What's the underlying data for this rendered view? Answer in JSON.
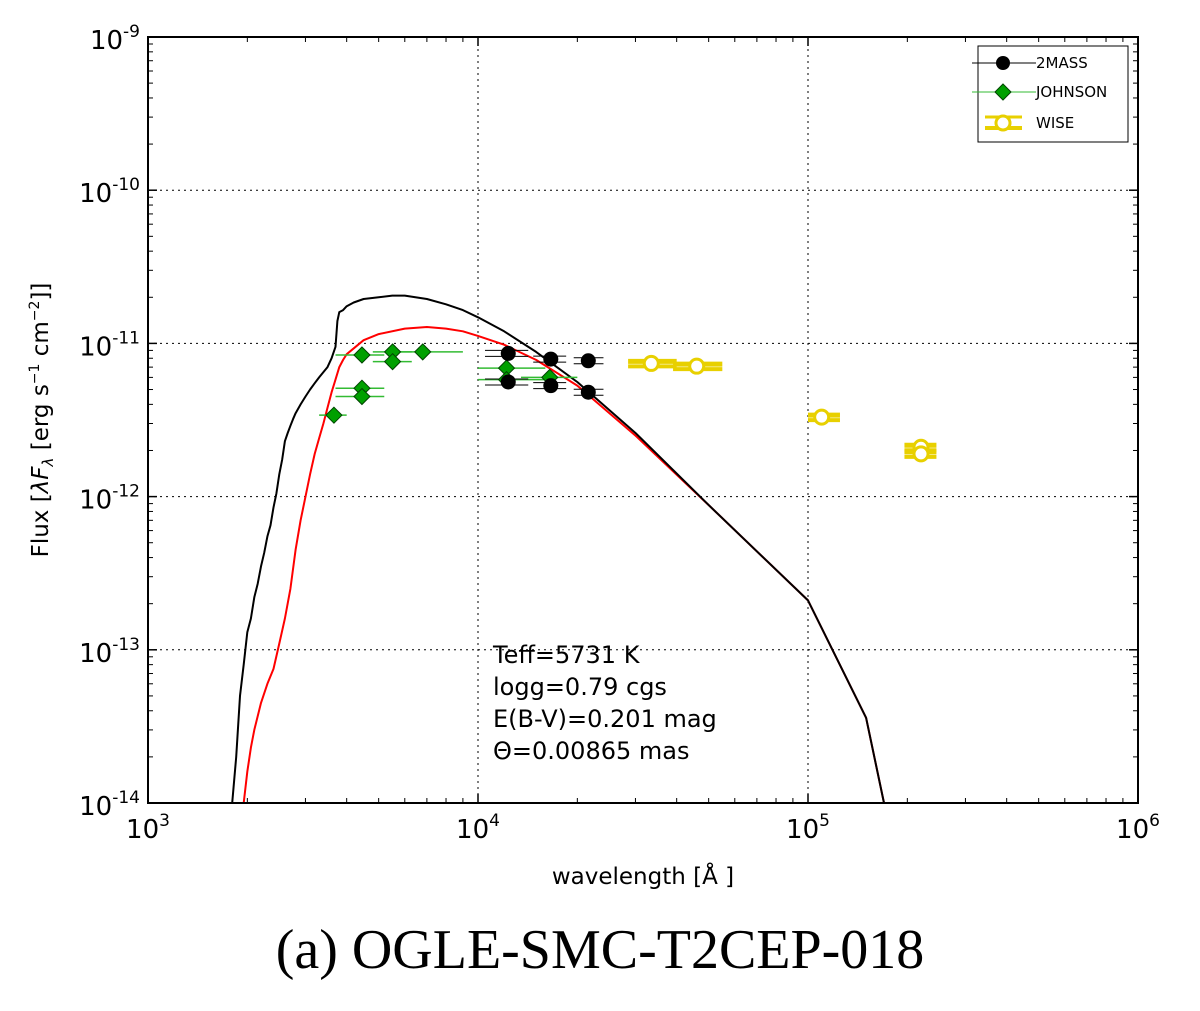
{
  "caption": "(a) OGLE-SMC-T2CEP-018",
  "chart_data": {
    "type": "scatter",
    "xscale": "log",
    "yscale": "log",
    "xlim": [
      1000,
      1000000
    ],
    "ylim": [
      1e-14,
      1e-09
    ],
    "xlabel": "wavelength [Å ]",
    "ylabel": "Flux [λF_λ [erg s⁻¹ cm⁻²]]",
    "x_ticks": [
      {
        "base": "10",
        "exp": "3",
        "value": 1000
      },
      {
        "base": "10",
        "exp": "4",
        "value": 10000
      },
      {
        "base": "10",
        "exp": "5",
        "value": 100000
      },
      {
        "base": "10",
        "exp": "6",
        "value": 1000000
      }
    ],
    "y_ticks": [
      {
        "base": "10",
        "exp": "-14",
        "value": 1e-14
      },
      {
        "base": "10",
        "exp": "-13",
        "value": 1e-13
      },
      {
        "base": "10",
        "exp": "-12",
        "value": 1e-12
      },
      {
        "base": "10",
        "exp": "-11",
        "value": 1e-11
      },
      {
        "base": "10",
        "exp": "-10",
        "value": 1e-10
      },
      {
        "base": "10",
        "exp": "-9",
        "value": 1e-09
      }
    ],
    "grid": true,
    "legend_position": "top-right",
    "annotation": [
      "Teff=5731 K",
      "logg=0.79 cgs",
      "E(B-V)=0.201 mag",
      "Θ=0.00865 mas"
    ],
    "colors": {
      "black_model": "#000000",
      "red_model": "#ff0000",
      "twomass": "#000000",
      "johnson": "#00a000",
      "johnson_err": "#33bb33",
      "wise": "#e8d000"
    },
    "series": [
      {
        "name": "2MASS",
        "marker": "filled-circle",
        "points": [
          {
            "x": 12350,
            "y": 8.6e-12,
            "xerr": [
              10500,
              14200
            ]
          },
          {
            "x": 16620,
            "y": 7.9e-12,
            "xerr": [
              14700,
              18500
            ]
          },
          {
            "x": 21590,
            "y": 7.7e-12,
            "xerr": [
              19500,
              24000
            ]
          },
          {
            "x": 12350,
            "y": 5.6e-12,
            "xerr": [
              10500,
              14200
            ]
          },
          {
            "x": 16620,
            "y": 5.3e-12,
            "xerr": [
              14700,
              18500
            ]
          },
          {
            "x": 21590,
            "y": 4.8e-12,
            "xerr": [
              19500,
              24000
            ]
          }
        ]
      },
      {
        "name": "JOHNSON",
        "marker": "filled-diamond",
        "points": [
          {
            "x": 3660,
            "y": 3.4e-12,
            "xerr": [
              3300,
              4000
            ]
          },
          {
            "x": 4450,
            "y": 8.4e-12,
            "xerr": [
              3700,
              5200
            ]
          },
          {
            "x": 4450,
            "y": 5.1e-12,
            "xerr": [
              3700,
              5200
            ]
          },
          {
            "x": 4450,
            "y": 4.5e-12,
            "xerr": [
              3700,
              5200
            ]
          },
          {
            "x": 5510,
            "y": 8.8e-12,
            "xerr": [
              4800,
              6300
            ]
          },
          {
            "x": 5510,
            "y": 7.6e-12,
            "xerr": [
              4800,
              6300
            ]
          },
          {
            "x": 6800,
            "y": 8.8e-12,
            "xerr": [
              5700,
              9000
            ]
          },
          {
            "x": 12200,
            "y": 6.9e-12,
            "xerr": [
              10000,
              16000
            ]
          },
          {
            "x": 12200,
            "y": 5.8e-12,
            "xerr": [
              10000,
              16000
            ]
          },
          {
            "x": 16500,
            "y": 6e-12,
            "xerr": [
              13500,
              20000
            ]
          }
        ]
      },
      {
        "name": "WISE",
        "marker": "open-circle",
        "points": [
          {
            "x": 33500,
            "y": 7.4e-12,
            "xerr": [
              28500,
              40000
            ]
          },
          {
            "x": 46000,
            "y": 7.1e-12,
            "xerr": [
              39000,
              55000
            ]
          },
          {
            "x": 110000,
            "y": 3.3e-12,
            "xerr": [
              100000,
              125000
            ]
          },
          {
            "x": 220000,
            "y": 2.1e-12,
            "xerr": [
              196000,
              245000
            ]
          },
          {
            "x": 220000,
            "y": 1.9e-12,
            "xerr": [
              196000,
              245000
            ]
          }
        ]
      }
    ],
    "model_curves": [
      {
        "name": "model-black",
        "points": [
          [
            1800,
            1e-14
          ],
          [
            1850,
            2e-14
          ],
          [
            1900,
            5e-14
          ],
          [
            1950,
            8e-14
          ],
          [
            2000,
            1.3e-13
          ],
          [
            2050,
            1.6e-13
          ],
          [
            2100,
            2.2e-13
          ],
          [
            2150,
            2.7e-13
          ],
          [
            2200,
            3.5e-13
          ],
          [
            2250,
            4.3e-13
          ],
          [
            2300,
            5.5e-13
          ],
          [
            2350,
            6.5e-13
          ],
          [
            2400,
            8.5e-13
          ],
          [
            2450,
            1.05e-12
          ],
          [
            2500,
            1.4e-12
          ],
          [
            2550,
            1.75e-12
          ],
          [
            2600,
            2.3e-12
          ],
          [
            2650,
            2.6e-12
          ],
          [
            2700,
            2.9e-12
          ],
          [
            2750,
            3.2e-12
          ],
          [
            2800,
            3.5e-12
          ],
          [
            2900,
            4e-12
          ],
          [
            3000,
            4.5e-12
          ],
          [
            3100,
            5e-12
          ],
          [
            3200,
            5.5e-12
          ],
          [
            3300,
            6e-12
          ],
          [
            3400,
            6.5e-12
          ],
          [
            3500,
            7e-12
          ],
          [
            3600,
            8e-12
          ],
          [
            3700,
            9.5e-12
          ],
          [
            3750,
            1.4e-11
          ],
          [
            3800,
            1.6e-11
          ],
          [
            3900,
            1.65e-11
          ],
          [
            4000,
            1.75e-11
          ],
          [
            4200,
            1.85e-11
          ],
          [
            4500,
            1.95e-11
          ],
          [
            5000,
            2e-11
          ],
          [
            5500,
            2.05e-11
          ],
          [
            6000,
            2.05e-11
          ],
          [
            7000,
            1.95e-11
          ],
          [
            8000,
            1.8e-11
          ],
          [
            9000,
            1.65e-11
          ],
          [
            10000,
            1.48e-11
          ],
          [
            12000,
            1.2e-11
          ],
          [
            15000,
            8.8e-12
          ],
          [
            20000,
            5.6e-12
          ],
          [
            30000,
            2.6e-12
          ],
          [
            50000,
            8.8e-13
          ],
          [
            100000,
            2.1e-13
          ],
          [
            150000,
            3.6e-14
          ],
          [
            170000,
            1e-14
          ]
        ]
      },
      {
        "name": "model-red",
        "points": [
          [
            1950,
            1e-14
          ],
          [
            2000,
            1.6e-14
          ],
          [
            2050,
            2.3e-14
          ],
          [
            2100,
            3e-14
          ],
          [
            2200,
            4.5e-14
          ],
          [
            2300,
            6e-14
          ],
          [
            2400,
            7.5e-14
          ],
          [
            2500,
            1.1e-13
          ],
          [
            2600,
            1.6e-13
          ],
          [
            2700,
            2.5e-13
          ],
          [
            2800,
            4.5e-13
          ],
          [
            2900,
            7e-13
          ],
          [
            3000,
            1e-12
          ],
          [
            3100,
            1.4e-12
          ],
          [
            3200,
            1.9e-12
          ],
          [
            3300,
            2.4e-12
          ],
          [
            3400,
            3e-12
          ],
          [
            3500,
            3.8e-12
          ],
          [
            3600,
            4.8e-12
          ],
          [
            3700,
            5.8e-12
          ],
          [
            3800,
            7e-12
          ],
          [
            3900,
            7.8e-12
          ],
          [
            4000,
            8.5e-12
          ],
          [
            4500,
            1.05e-11
          ],
          [
            5000,
            1.15e-11
          ],
          [
            6000,
            1.25e-11
          ],
          [
            7000,
            1.28e-11
          ],
          [
            8000,
            1.25e-11
          ],
          [
            9000,
            1.2e-11
          ],
          [
            10000,
            1.12e-11
          ],
          [
            12000,
            9.8e-12
          ],
          [
            15000,
            7.8e-12
          ],
          [
            20000,
            5.3e-12
          ],
          [
            30000,
            2.5e-12
          ],
          [
            50000,
            8.8e-13
          ],
          [
            100000,
            2.1e-13
          ],
          [
            150000,
            3.6e-14
          ],
          [
            170000,
            1e-14
          ]
        ]
      }
    ]
  }
}
